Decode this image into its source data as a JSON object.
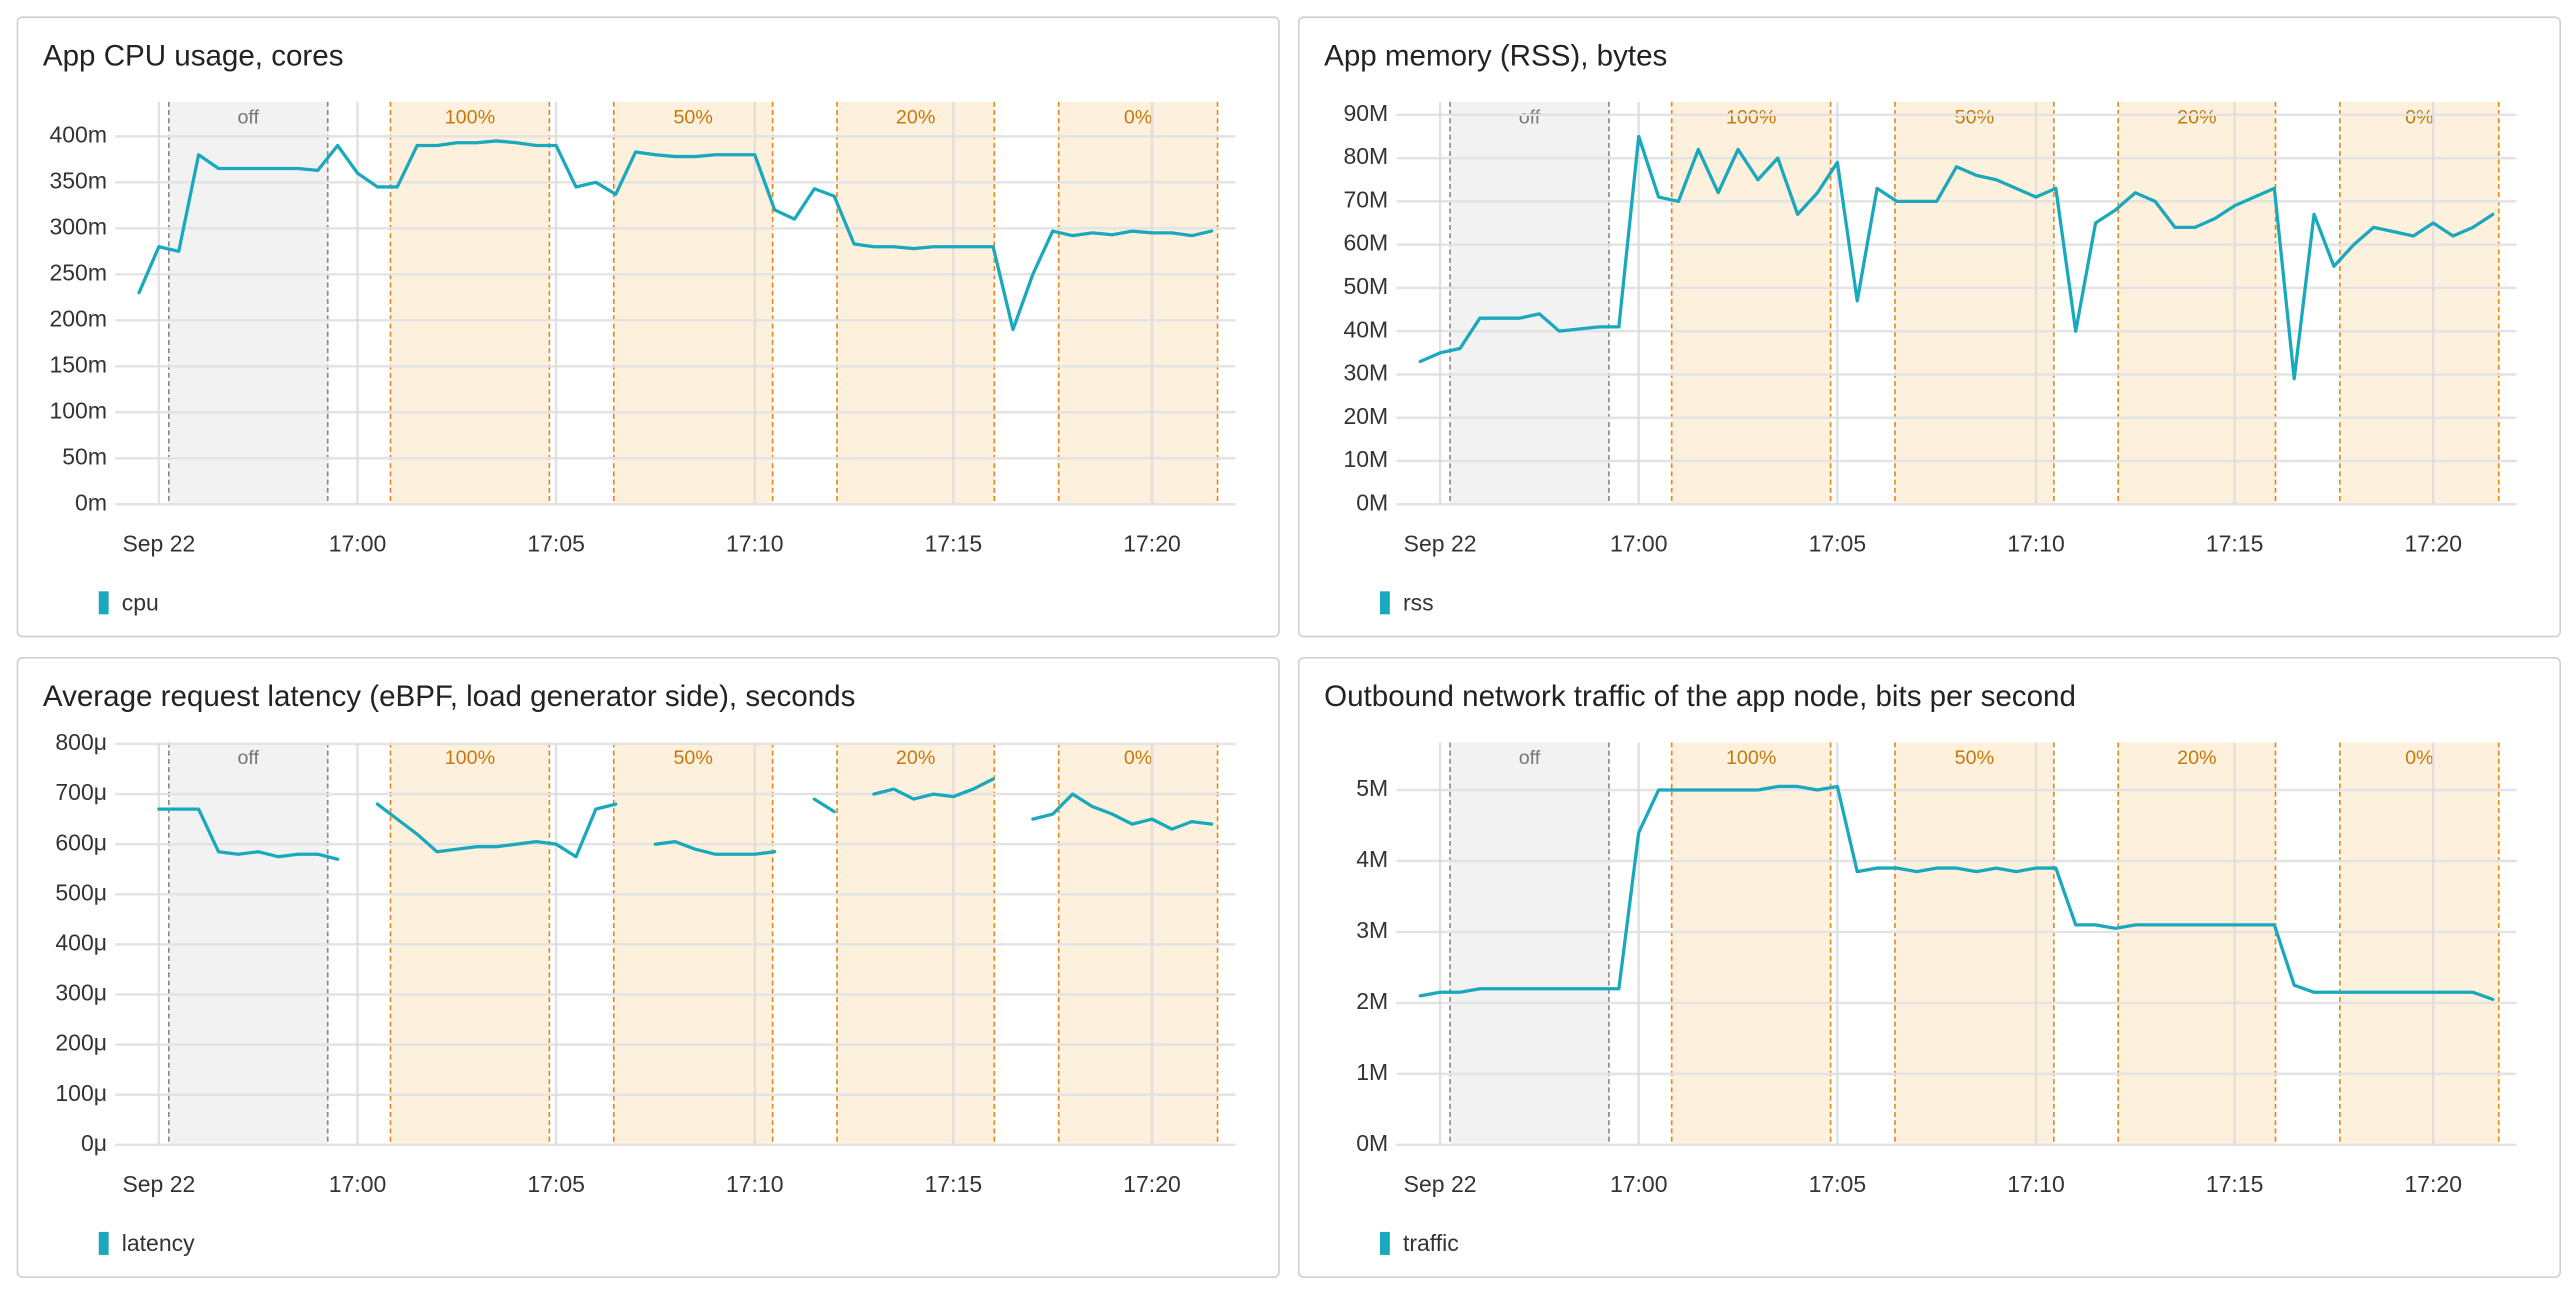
{
  "chart_data": [
    {
      "type": "line",
      "title": "App CPU usage, cores",
      "x": [
        1014.5,
        1015,
        1015.5,
        1016,
        1016.5,
        1017,
        1017.5,
        1018,
        1018.5,
        1019,
        1019.5,
        1020,
        1020.5,
        1021,
        1021.5,
        1022,
        1022.5,
        1023,
        1023.5,
        1024,
        1024.5,
        1025,
        1025.5,
        1026,
        1026.5,
        1027,
        1027.5,
        1028,
        1028.5,
        1029,
        1029.5,
        1030,
        1030.5,
        1031,
        1031.5,
        1032,
        1032.5,
        1033,
        1033.5,
        1034,
        1034.5,
        1035,
        1035.5,
        1036,
        1036.5,
        1037,
        1037.5,
        1038,
        1038.5,
        1039,
        1039.5,
        1040,
        1040.5,
        1041,
        1041.5
      ],
      "series": [
        {
          "name": "cpu",
          "color": "#1aa9bc",
          "values": [
            0.23,
            0.28,
            0.275,
            0.38,
            0.365,
            0.365,
            0.365,
            0.365,
            0.365,
            0.363,
            0.39,
            0.36,
            0.345,
            0.345,
            0.39,
            0.39,
            0.393,
            0.393,
            0.395,
            0.393,
            0.39,
            0.39,
            0.345,
            0.35,
            0.337,
            0.383,
            0.38,
            0.378,
            0.378,
            0.38,
            0.38,
            0.38,
            0.32,
            0.31,
            0.343,
            0.335,
            0.283,
            0.28,
            0.28,
            0.278,
            0.28,
            0.28,
            0.28,
            0.28,
            0.19,
            0.25,
            0.297,
            0.292,
            0.295,
            0.293,
            0.297,
            0.295,
            0.295,
            0.292,
            0.297
          ]
        }
      ],
      "xlim": [
        1013.9,
        1042.1
      ],
      "xticks": [
        {
          "value": 1015,
          "label": "Sep 22"
        },
        {
          "value": 1020,
          "label": "17:00"
        },
        {
          "value": 1025,
          "label": "17:05"
        },
        {
          "value": 1030,
          "label": "17:10"
        },
        {
          "value": 1035,
          "label": "17:15"
        },
        {
          "value": 1040,
          "label": "17:20"
        }
      ],
      "ylim": [
        0,
        0.4375
      ],
      "yticks": [
        {
          "value": 0,
          "label": "0m"
        },
        {
          "value": 0.05,
          "label": "50m"
        },
        {
          "value": 0.1,
          "label": "100m"
        },
        {
          "value": 0.15,
          "label": "150m"
        },
        {
          "value": 0.2,
          "label": "200m"
        },
        {
          "value": 0.25,
          "label": "250m"
        },
        {
          "value": 0.3,
          "label": "300m"
        },
        {
          "value": 0.35,
          "label": "350m"
        },
        {
          "value": 0.4,
          "label": "400m"
        }
      ],
      "grid": true,
      "bands": [
        {
          "label": "off",
          "start": 1015.25,
          "end": 1019.25,
          "color": "#f2f2f2",
          "edge_color": "#888888",
          "label_color": "#777777"
        },
        {
          "label": "100%",
          "start": 1020.83,
          "end": 1024.83,
          "color": "#fdf0dc",
          "edge_color": "#e08a1e",
          "label_color": "#c8780a"
        },
        {
          "label": "50%",
          "start": 1026.45,
          "end": 1030.45,
          "color": "#fdf0dc",
          "edge_color": "#e08a1e",
          "label_color": "#c8780a"
        },
        {
          "label": "20%",
          "start": 1032.07,
          "end": 1036.03,
          "color": "#fdf0dc",
          "edge_color": "#e08a1e",
          "label_color": "#c8780a"
        },
        {
          "label": "0%",
          "start": 1037.65,
          "end": 1041.65,
          "color": "#fdf0dc",
          "edge_color": "#e08a1e",
          "label_color": "#c8780a"
        }
      ]
    },
    {
      "type": "line",
      "title": "App memory (RSS), bytes",
      "x": [
        1014.5,
        1015,
        1015.5,
        1016,
        1016.5,
        1017,
        1017.5,
        1018,
        1018.5,
        1019,
        1019.5,
        1020,
        1020.5,
        1021,
        1021.5,
        1022,
        1022.5,
        1023,
        1023.5,
        1024,
        1024.5,
        1025,
        1025.5,
        1026,
        1026.5,
        1027,
        1027.5,
        1028,
        1028.5,
        1029,
        1029.5,
        1030,
        1030.5,
        1031,
        1031.5,
        1032,
        1032.5,
        1033,
        1033.5,
        1034,
        1034.5,
        1035,
        1035.5,
        1036,
        1036.5,
        1037,
        1037.5,
        1038,
        1038.5,
        1039,
        1039.5,
        1040,
        1040.5,
        1041,
        1041.5
      ],
      "series": [
        {
          "name": "rss",
          "color": "#1aa9bc",
          "values": [
            33000000,
            35000000,
            36000000,
            43000000,
            43000000,
            43000000,
            44000000,
            40000000,
            40500000,
            41000000,
            41000000,
            85000000,
            71000000,
            70000000,
            82000000,
            72000000,
            82000000,
            75000000,
            80000000,
            67000000,
            72000000,
            79000000,
            47000000,
            73000000,
            70000000,
            70000000,
            70000000,
            78000000,
            76000000,
            75000000,
            73000000,
            71000000,
            73000000,
            40000000,
            65000000,
            68000000,
            72000000,
            70000000,
            64000000,
            64000000,
            66000000,
            69000000,
            71000000,
            73000000,
            29000000,
            67000000,
            55000000,
            60000000,
            64000000,
            63000000,
            62000000,
            65000000,
            62000000,
            64000000,
            67000000
          ]
        }
      ],
      "xlim": [
        1013.9,
        1042.1
      ],
      "xticks": [
        {
          "value": 1015,
          "label": "Sep 22"
        },
        {
          "value": 1020,
          "label": "17:00"
        },
        {
          "value": 1025,
          "label": "17:05"
        },
        {
          "value": 1030,
          "label": "17:10"
        },
        {
          "value": 1035,
          "label": "17:15"
        },
        {
          "value": 1040,
          "label": "17:20"
        }
      ],
      "ylim": [
        0,
        93000000
      ],
      "yticks": [
        {
          "value": 0,
          "label": "0M"
        },
        {
          "value": 10000000,
          "label": "10M"
        },
        {
          "value": 20000000,
          "label": "20M"
        },
        {
          "value": 30000000,
          "label": "30M"
        },
        {
          "value": 40000000,
          "label": "40M"
        },
        {
          "value": 50000000,
          "label": "50M"
        },
        {
          "value": 60000000,
          "label": "60M"
        },
        {
          "value": 70000000,
          "label": "70M"
        },
        {
          "value": 80000000,
          "label": "80M"
        },
        {
          "value": 90000000,
          "label": "90M"
        }
      ],
      "grid": true,
      "bands": [
        {
          "label": "off",
          "start": 1015.25,
          "end": 1019.25,
          "color": "#f2f2f2",
          "edge_color": "#888888",
          "label_color": "#777777"
        },
        {
          "label": "100%",
          "start": 1020.83,
          "end": 1024.83,
          "color": "#fdf0dc",
          "edge_color": "#e08a1e",
          "label_color": "#c8780a"
        },
        {
          "label": "50%",
          "start": 1026.45,
          "end": 1030.45,
          "color": "#fdf0dc",
          "edge_color": "#e08a1e",
          "label_color": "#c8780a"
        },
        {
          "label": "20%",
          "start": 1032.07,
          "end": 1036.03,
          "color": "#fdf0dc",
          "edge_color": "#e08a1e",
          "label_color": "#c8780a"
        },
        {
          "label": "0%",
          "start": 1037.65,
          "end": 1041.65,
          "color": "#fdf0dc",
          "edge_color": "#e08a1e",
          "label_color": "#c8780a"
        }
      ]
    },
    {
      "type": "line",
      "title": "Average request latency (eBPF, load generator side), seconds",
      "x": [
        1014.5,
        1015,
        1015.5,
        1016,
        1016.5,
        1017,
        1017.5,
        1018,
        1018.5,
        1019,
        1019.5,
        1020,
        1020.5,
        1021,
        1021.5,
        1022,
        1022.5,
        1023,
        1023.5,
        1024,
        1024.5,
        1025,
        1025.5,
        1026,
        1026.5,
        1027,
        1027.5,
        1028,
        1028.5,
        1029,
        1029.5,
        1030,
        1030.5,
        1031,
        1031.5,
        1032,
        1032.5,
        1033,
        1033.5,
        1034,
        1034.5,
        1035,
        1035.5,
        1036,
        1036.5,
        1037,
        1037.5,
        1038,
        1038.5,
        1039,
        1039.5,
        1040,
        1040.5,
        1041,
        1041.5
      ],
      "series": [
        {
          "name": "latency",
          "color": "#1aa9bc",
          "values": [
            null,
            0.00067,
            0.00067,
            0.00067,
            0.000585,
            0.00058,
            0.000585,
            0.000575,
            0.00058,
            0.00058,
            0.00057,
            null,
            0.00068,
            0.00065,
            0.00062,
            0.000585,
            0.00059,
            0.000595,
            0.000595,
            0.0006,
            0.000605,
            0.0006,
            0.000575,
            0.00067,
            0.00068,
            null,
            0.0006,
            0.000605,
            0.00059,
            0.00058,
            0.00058,
            0.00058,
            0.000585,
            null,
            0.00069,
            0.000665,
            null,
            0.0007,
            0.00071,
            0.00069,
            0.0007,
            0.000695,
            0.00071,
            0.00073,
            null,
            0.00065,
            0.00066,
            0.0007,
            0.000675,
            0.00066,
            0.00064,
            0.00065,
            0.00063,
            0.000645,
            0.00064
          ]
        }
      ],
      "xlim": [
        1013.9,
        1042.1
      ],
      "xticks": [
        {
          "value": 1015,
          "label": "Sep 22"
        },
        {
          "value": 1020,
          "label": "17:00"
        },
        {
          "value": 1025,
          "label": "17:05"
        },
        {
          "value": 1030,
          "label": "17:10"
        },
        {
          "value": 1035,
          "label": "17:15"
        },
        {
          "value": 1040,
          "label": "17:20"
        }
      ],
      "ylim": [
        0,
        0.000803
      ],
      "yticks": [
        {
          "value": 0,
          "label": "0μ"
        },
        {
          "value": 0.0001,
          "label": "100μ"
        },
        {
          "value": 0.0002,
          "label": "200μ"
        },
        {
          "value": 0.0003,
          "label": "300μ"
        },
        {
          "value": 0.0004,
          "label": "400μ"
        },
        {
          "value": 0.0005,
          "label": "500μ"
        },
        {
          "value": 0.0006,
          "label": "600μ"
        },
        {
          "value": 0.0007,
          "label": "700μ"
        },
        {
          "value": 0.0008,
          "label": "800μ"
        }
      ],
      "grid": true,
      "bands": [
        {
          "label": "off",
          "start": 1015.25,
          "end": 1019.25,
          "color": "#f2f2f2",
          "edge_color": "#888888",
          "label_color": "#777777"
        },
        {
          "label": "100%",
          "start": 1020.83,
          "end": 1024.83,
          "color": "#fdf0dc",
          "edge_color": "#e08a1e",
          "label_color": "#c8780a"
        },
        {
          "label": "50%",
          "start": 1026.45,
          "end": 1030.45,
          "color": "#fdf0dc",
          "edge_color": "#e08a1e",
          "label_color": "#c8780a"
        },
        {
          "label": "20%",
          "start": 1032.07,
          "end": 1036.03,
          "color": "#fdf0dc",
          "edge_color": "#e08a1e",
          "label_color": "#c8780a"
        },
        {
          "label": "0%",
          "start": 1037.65,
          "end": 1041.65,
          "color": "#fdf0dc",
          "edge_color": "#e08a1e",
          "label_color": "#c8780a"
        }
      ]
    },
    {
      "type": "line",
      "title": "Outbound network traffic of the app node, bits per second",
      "x": [
        1014.5,
        1015,
        1015.5,
        1016,
        1016.5,
        1017,
        1017.5,
        1018,
        1018.5,
        1019,
        1019.5,
        1020,
        1020.5,
        1021,
        1021.5,
        1022,
        1022.5,
        1023,
        1023.5,
        1024,
        1024.5,
        1025,
        1025.5,
        1026,
        1026.5,
        1027,
        1027.5,
        1028,
        1028.5,
        1029,
        1029.5,
        1030,
        1030.5,
        1031,
        1031.5,
        1032,
        1032.5,
        1033,
        1033.5,
        1034,
        1034.5,
        1035,
        1035.5,
        1036,
        1036.5,
        1037,
        1037.5,
        1038,
        1038.5,
        1039,
        1039.5,
        1040,
        1040.5,
        1041,
        1041.5
      ],
      "series": [
        {
          "name": "traffic",
          "color": "#1aa9bc",
          "values": [
            2100000,
            2150000,
            2150000,
            2200000,
            2200000,
            2200000,
            2200000,
            2200000,
            2200000,
            2200000,
            2200000,
            4400000,
            5000000,
            5000000,
            5000000,
            5000000,
            5000000,
            5000000,
            5050000,
            5050000,
            5000000,
            5050000,
            3850000,
            3900000,
            3900000,
            3850000,
            3900000,
            3900000,
            3850000,
            3900000,
            3850000,
            3900000,
            3900000,
            3100000,
            3100000,
            3050000,
            3100000,
            3100000,
            3100000,
            3100000,
            3100000,
            3100000,
            3100000,
            3100000,
            2250000,
            2150000,
            2150000,
            2150000,
            2150000,
            2150000,
            2150000,
            2150000,
            2150000,
            2150000,
            2050000
          ]
        }
      ],
      "xlim": [
        1013.9,
        1042.1
      ],
      "xticks": [
        {
          "value": 1015,
          "label": "Sep 22"
        },
        {
          "value": 1020,
          "label": "17:00"
        },
        {
          "value": 1025,
          "label": "17:05"
        },
        {
          "value": 1030,
          "label": "17:10"
        },
        {
          "value": 1035,
          "label": "17:15"
        },
        {
          "value": 1040,
          "label": "17:20"
        }
      ],
      "ylim": [
        0,
        5670000
      ],
      "yticks": [
        {
          "value": 0,
          "label": "0M"
        },
        {
          "value": 1000000,
          "label": "1M"
        },
        {
          "value": 2000000,
          "label": "2M"
        },
        {
          "value": 3000000,
          "label": "3M"
        },
        {
          "value": 4000000,
          "label": "4M"
        },
        {
          "value": 5000000,
          "label": "5M"
        }
      ],
      "grid": true,
      "bands": [
        {
          "label": "off",
          "start": 1015.25,
          "end": 1019.25,
          "color": "#f2f2f2",
          "edge_color": "#888888",
          "label_color": "#777777"
        },
        {
          "label": "100%",
          "start": 1020.83,
          "end": 1024.83,
          "color": "#fdf0dc",
          "edge_color": "#e08a1e",
          "label_color": "#c8780a"
        },
        {
          "label": "50%",
          "start": 1026.45,
          "end": 1030.45,
          "color": "#fdf0dc",
          "edge_color": "#e08a1e",
          "label_color": "#c8780a"
        },
        {
          "label": "20%",
          "start": 1032.07,
          "end": 1036.03,
          "color": "#fdf0dc",
          "edge_color": "#e08a1e",
          "label_color": "#c8780a"
        },
        {
          "label": "0%",
          "start": 1037.65,
          "end": 1041.65,
          "color": "#fdf0dc",
          "edge_color": "#e08a1e",
          "label_color": "#c8780a"
        }
      ]
    }
  ]
}
